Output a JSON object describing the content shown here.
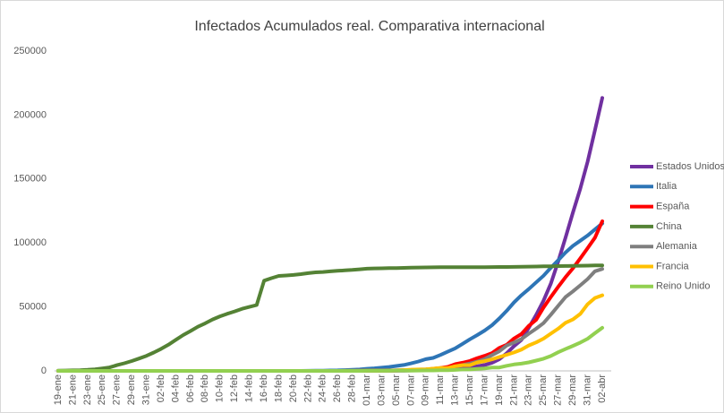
{
  "chart_data": {
    "type": "line",
    "title": "Infectados Acumulados real. Comparativa internacional",
    "categories": [
      "19-ene",
      null,
      "21-ene",
      null,
      "23-ene",
      null,
      "25-ene",
      null,
      "27-ene",
      null,
      "29-ene",
      null,
      "31-ene",
      null,
      "02-feb",
      null,
      "04-feb",
      null,
      "06-feb",
      null,
      "08-feb",
      null,
      "10-feb",
      null,
      "12-feb",
      null,
      "14-feb",
      null,
      "16-feb",
      null,
      "18-feb",
      null,
      "20-feb",
      null,
      "22-feb",
      null,
      "24-feb",
      null,
      "26-feb",
      null,
      "28-feb",
      null,
      "01-mar",
      null,
      "03-mar",
      null,
      "05-mar",
      null,
      "07-mar",
      null,
      "09-mar",
      null,
      "11-mar",
      null,
      "13-mar",
      null,
      "15-mar",
      null,
      "17-mar",
      null,
      "19-mar",
      null,
      "21-mar",
      null,
      "23-mar",
      null,
      "25-mar",
      null,
      "27-mar",
      null,
      "29-mar",
      null,
      "31-mar",
      null,
      "02-abr"
    ],
    "series": [
      {
        "name": "Estados Unidos",
        "color": "#7030a0",
        "values": [
          0,
          0,
          0,
          1,
          1,
          2,
          2,
          5,
          5,
          5,
          5,
          6,
          7,
          8,
          11,
          11,
          11,
          12,
          12,
          12,
          12,
          12,
          12,
          13,
          13,
          14,
          15,
          15,
          15,
          15,
          15,
          15,
          15,
          15,
          15,
          35,
          35,
          35,
          53,
          53,
          59,
          60,
          62,
          75,
          100,
          124,
          158,
          221,
          319,
          435,
          541,
          704,
          994,
          1301,
          1630,
          2183,
          2770,
          3613,
          4596,
          6344,
          9197,
          13779,
          19367,
          24192,
          33592,
          43781,
          54856,
          68211,
          85435,
          104126,
          123578,
          142460,
          163539,
          188172,
          213372
        ]
      },
      {
        "name": "Italia",
        "color": "#2e75b6",
        "values": [
          0,
          0,
          0,
          0,
          0,
          0,
          0,
          0,
          0,
          0,
          0,
          0,
          2,
          2,
          2,
          2,
          2,
          2,
          2,
          3,
          3,
          3,
          3,
          3,
          3,
          3,
          3,
          3,
          3,
          3,
          3,
          3,
          3,
          20,
          62,
          155,
          229,
          322,
          453,
          655,
          888,
          1128,
          1694,
          2036,
          2502,
          3089,
          3858,
          4636,
          5883,
          7375,
          9172,
          10149,
          12462,
          15113,
          17660,
          21157,
          24747,
          27980,
          31506,
          35713,
          41035,
          47021,
          53578,
          59138,
          63927,
          69176,
          74386,
          80589,
          86498,
          92472,
          97689,
          101739,
          105792,
          110574,
          115242
        ]
      },
      {
        "name": "España",
        "color": "#ff0000",
        "values": [
          0,
          0,
          0,
          0,
          0,
          0,
          0,
          0,
          0,
          0,
          0,
          0,
          0,
          1,
          1,
          1,
          1,
          1,
          1,
          1,
          1,
          1,
          2,
          2,
          2,
          2,
          2,
          2,
          2,
          2,
          2,
          2,
          2,
          2,
          2,
          2,
          2,
          6,
          13,
          15,
          32,
          45,
          84,
          120,
          165,
          222,
          259,
          400,
          500,
          673,
          1073,
          1695,
          2277,
          3146,
          5232,
          6391,
          7798,
          9942,
          11748,
          13910,
          17963,
          20410,
          25374,
          28768,
          35136,
          39885,
          49515,
          57786,
          65719,
          73235,
          80110,
          87956,
          95923,
          104118,
          117000
        ]
      },
      {
        "name": "China",
        "color": "#548235",
        "values": [
          200,
          300,
          440,
          571,
          830,
          1287,
          1975,
          2744,
          4515,
          5974,
          7711,
          9692,
          11791,
          14380,
          17205,
          20438,
          24324,
          28018,
          31161,
          34546,
          37198,
          40171,
          42638,
          44653,
          46472,
          48500,
          50000,
          51500,
          70500,
          72500,
          74200,
          74600,
          75000,
          75600,
          76400,
          77000,
          77300,
          77800,
          78200,
          78600,
          78900,
          79400,
          79900,
          80100,
          80200,
          80300,
          80400,
          80500,
          80700,
          80800,
          80900,
          80950,
          81000,
          81000,
          81000,
          81050,
          81050,
          81100,
          81100,
          81150,
          81200,
          81250,
          81300,
          81400,
          81500,
          81600,
          81700,
          81800,
          81900,
          82000,
          82100,
          82200,
          82300,
          82400,
          82500
        ]
      },
      {
        "name": "Alemania",
        "color": "#7f7f7f",
        "values": [
          0,
          0,
          0,
          0,
          0,
          0,
          0,
          0,
          1,
          4,
          4,
          5,
          7,
          8,
          10,
          12,
          12,
          12,
          13,
          13,
          14,
          14,
          16,
          16,
          16,
          16,
          16,
          16,
          16,
          16,
          16,
          16,
          16,
          16,
          16,
          16,
          16,
          18,
          21,
          26,
          53,
          66,
          130,
          159,
          196,
          262,
          482,
          670,
          799,
          1040,
          1176,
          1457,
          1908,
          2078,
          3675,
          4585,
          5795,
          7272,
          9257,
          12327,
          15320,
          19848,
          22213,
          24873,
          29056,
          32986,
          37323,
          43938,
          50871,
          57695,
          62095,
          66885,
          71808,
          77872,
          79696
        ]
      },
      {
        "name": "Francia",
        "color": "#ffc000",
        "values": [
          0,
          0,
          0,
          0,
          0,
          3,
          3,
          3,
          4,
          5,
          5,
          5,
          6,
          6,
          6,
          6,
          6,
          6,
          6,
          11,
          11,
          11,
          11,
          11,
          11,
          11,
          12,
          12,
          12,
          12,
          12,
          12,
          12,
          12,
          12,
          12,
          12,
          14,
          18,
          38,
          57,
          100,
          130,
          191,
          204,
          285,
          377,
          653,
          949,
          1126,
          1209,
          1784,
          2281,
          2281,
          3661,
          4469,
          4499,
          6633,
          7652,
          9043,
          10871,
          12612,
          14459,
          16689,
          19856,
          22302,
          25233,
          29155,
          32964,
          37575,
          40174,
          44550,
          52128,
          56989,
          59105
        ]
      },
      {
        "name": "Reino Unido",
        "color": "#92d050",
        "values": [
          0,
          0,
          0,
          0,
          0,
          0,
          0,
          0,
          0,
          0,
          0,
          0,
          2,
          2,
          2,
          2,
          2,
          2,
          2,
          2,
          3,
          3,
          8,
          8,
          9,
          9,
          9,
          9,
          9,
          9,
          9,
          9,
          9,
          9,
          9,
          9,
          13,
          13,
          13,
          15,
          20,
          23,
          36,
          40,
          51,
          85,
          115,
          163,
          206,
          273,
          321,
          382,
          456,
          456,
          798,
          1140,
          1140,
          1543,
          1950,
          2626,
          2689,
          3983,
          5018,
          5683,
          6650,
          8077,
          9529,
          11658,
          14543,
          17089,
          19522,
          22141,
          25150,
          29474,
          33718
        ]
      }
    ],
    "ylim": [
      0,
      250000
    ],
    "yticks": [
      0,
      50000,
      100000,
      150000,
      200000,
      250000
    ],
    "grid": false,
    "legend": "right"
  }
}
